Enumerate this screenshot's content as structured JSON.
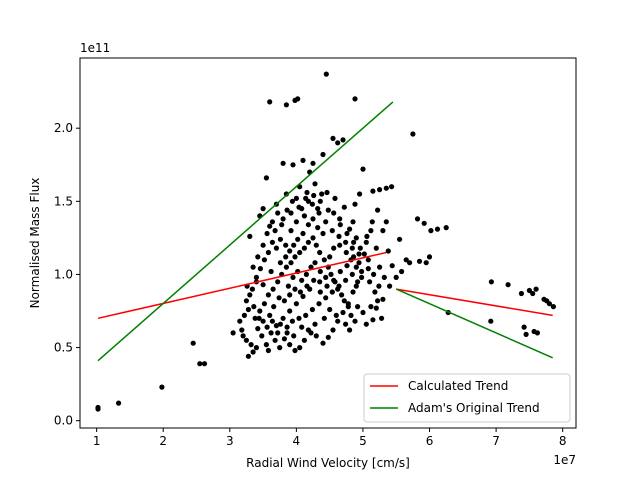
{
  "chart_data": {
    "type": "scatter",
    "title": "",
    "xlabel": "Radial Wind Velocity [cm/s]",
    "ylabel": "Normalised Mass Flux",
    "x_offset_label": "1e7",
    "y_offset_label": "1e11",
    "xlim": [
      0.75,
      8.2
    ],
    "ylim": [
      -0.05,
      2.48
    ],
    "xticks": [
      1,
      2,
      3,
      4,
      5,
      6,
      7,
      8
    ],
    "yticks": [
      0.0,
      0.5,
      1.0,
      1.5,
      2.0
    ],
    "xtick_labels": [
      "1",
      "2",
      "3",
      "4",
      "5",
      "6",
      "7",
      "8"
    ],
    "ytick_labels": [
      "0.0",
      "0.5",
      "1.0",
      "1.5",
      "2.0"
    ],
    "grid": false,
    "legend_position": "bottom-right",
    "point_color": "#000000",
    "series": [
      {
        "name": "Calculated Trend",
        "type": "line",
        "color": "#ff0000",
        "segments": [
          [
            [
              1.02,
              0.7
            ],
            [
              5.35,
              1.15
            ]
          ],
          [
            [
              5.5,
              0.9
            ],
            [
              7.85,
              0.72
            ]
          ]
        ]
      },
      {
        "name": "Adam's Original Trend",
        "type": "line",
        "color": "#008000",
        "segments": [
          [
            [
              1.02,
              0.41
            ],
            [
              5.45,
              2.18
            ]
          ],
          [
            [
              5.5,
              0.9
            ],
            [
              7.85,
              0.43
            ]
          ]
        ]
      }
    ],
    "scatter_points": [
      [
        1.02,
        0.08
      ],
      [
        1.02,
        0.09
      ],
      [
        1.33,
        0.12
      ],
      [
        1.98,
        0.23
      ],
      [
        2.45,
        0.53
      ],
      [
        2.55,
        0.39
      ],
      [
        2.62,
        0.39
      ],
      [
        6.28,
        0.74
      ],
      [
        6.92,
        0.68
      ],
      [
        6.93,
        0.95
      ],
      [
        7.18,
        0.93
      ],
      [
        7.38,
        0.87
      ],
      [
        7.42,
        0.64
      ],
      [
        7.45,
        0.59
      ],
      [
        7.5,
        0.89
      ],
      [
        7.55,
        0.87
      ],
      [
        7.57,
        0.61
      ],
      [
        7.6,
        0.9
      ],
      [
        7.62,
        0.6
      ],
      [
        7.72,
        0.83
      ],
      [
        7.76,
        0.82
      ],
      [
        7.8,
        0.8
      ],
      [
        7.86,
        0.78
      ],
      [
        3.6,
        2.18
      ],
      [
        3.85,
        2.16
      ],
      [
        3.98,
        2.19
      ],
      [
        4.02,
        2.2
      ],
      [
        4.45,
        2.37
      ],
      [
        4.88,
        2.2
      ],
      [
        5.75,
        1.96
      ],
      [
        3.8,
        1.76
      ],
      [
        3.95,
        1.75
      ],
      [
        4.1,
        1.78
      ],
      [
        4.25,
        1.76
      ],
      [
        4.55,
        1.93
      ],
      [
        4.62,
        1.9
      ],
      [
        4.7,
        1.92
      ],
      [
        4.4,
        1.82
      ],
      [
        4.2,
        1.7
      ],
      [
        3.55,
        1.66
      ],
      [
        5.0,
        1.72
      ],
      [
        5.25,
        1.58
      ],
      [
        5.35,
        1.59
      ],
      [
        5.43,
        1.6
      ],
      [
        5.15,
        1.57
      ],
      [
        4.95,
        1.55
      ],
      [
        4.88,
        1.48
      ],
      [
        5.35,
        1.36
      ],
      [
        5.55,
        1.24
      ],
      [
        5.82,
        1.38
      ],
      [
        5.92,
        1.35
      ],
      [
        6.02,
        1.3
      ],
      [
        6.12,
        1.31
      ],
      [
        6.25,
        1.32
      ],
      [
        6.0,
        1.12
      ],
      [
        5.85,
        1.09
      ],
      [
        5.95,
        1.08
      ],
      [
        5.65,
        1.1
      ],
      [
        5.7,
        1.08
      ],
      [
        5.58,
        1.02
      ],
      [
        5.4,
        0.92
      ],
      [
        5.3,
        0.83
      ],
      [
        5.2,
        0.77
      ],
      [
        5.15,
        0.69
      ],
      [
        5.05,
        0.66
      ],
      [
        5.28,
        0.7
      ],
      [
        5.5,
        0.98
      ],
      [
        3.2,
        0.58
      ],
      [
        3.28,
        0.44
      ],
      [
        3.35,
        0.47
      ],
      [
        3.15,
        0.68
      ],
      [
        3.05,
        0.6
      ],
      [
        3.25,
        0.82
      ],
      [
        3.4,
        0.95
      ],
      [
        3.5,
        0.93
      ],
      [
        3.3,
        1.26
      ],
      [
        3.45,
        1.4
      ],
      [
        3.5,
        1.45
      ],
      [
        3.6,
        1.33
      ],
      [
        3.7,
        1.48
      ],
      [
        3.78,
        1.34
      ],
      [
        3.85,
        1.55
      ],
      [
        3.92,
        1.3
      ],
      [
        4.0,
        1.52
      ],
      [
        4.05,
        1.6
      ],
      [
        4.12,
        1.4
      ],
      [
        4.18,
        1.5
      ],
      [
        4.28,
        1.62
      ],
      [
        4.32,
        1.45
      ],
      [
        4.38,
        1.55
      ],
      [
        4.48,
        1.44
      ],
      [
        4.58,
        1.52
      ],
      [
        4.65,
        1.38
      ],
      [
        4.72,
        1.46
      ],
      [
        4.8,
        1.31
      ],
      [
        4.85,
        1.36
      ],
      [
        4.9,
        1.25
      ],
      [
        5.05,
        1.22
      ],
      [
        5.12,
        1.3
      ],
      [
        5.2,
        1.18
      ],
      [
        5.25,
        1.05
      ],
      [
        5.08,
        1.1
      ],
      [
        4.98,
        1.02
      ],
      [
        4.92,
        0.95
      ],
      [
        4.85,
        0.88
      ],
      [
        4.78,
        0.8
      ],
      [
        4.7,
        0.74
      ],
      [
        4.62,
        0.68
      ],
      [
        4.55,
        0.62
      ],
      [
        4.48,
        0.57
      ],
      [
        4.4,
        0.53
      ],
      [
        4.3,
        0.58
      ],
      [
        4.22,
        0.6
      ],
      [
        4.12,
        0.55
      ],
      [
        4.05,
        0.5
      ],
      [
        3.98,
        0.48
      ],
      [
        3.9,
        0.52
      ],
      [
        3.82,
        0.56
      ],
      [
        3.75,
        0.5
      ],
      [
        3.68,
        0.55
      ],
      [
        3.62,
        0.6
      ],
      [
        3.55,
        0.52
      ],
      [
        3.48,
        0.58
      ],
      [
        3.42,
        0.63
      ],
      [
        3.38,
        0.7
      ],
      [
        3.45,
        0.75
      ],
      [
        3.52,
        0.8
      ],
      [
        3.58,
        0.86
      ],
      [
        3.65,
        0.9
      ],
      [
        3.72,
        0.95
      ],
      [
        3.78,
        1.0
      ],
      [
        3.85,
        1.05
      ],
      [
        3.92,
        1.08
      ],
      [
        3.98,
        1.12
      ],
      [
        4.05,
        1.15
      ],
      [
        4.12,
        1.18
      ],
      [
        4.18,
        1.22
      ],
      [
        4.25,
        1.25
      ],
      [
        4.3,
        1.2
      ],
      [
        4.35,
        1.15
      ],
      [
        4.42,
        1.1
      ],
      [
        4.48,
        1.05
      ],
      [
        4.52,
        1.0
      ],
      [
        4.58,
        0.95
      ],
      [
        4.62,
        0.9
      ],
      [
        4.68,
        0.86
      ],
      [
        4.72,
        0.82
      ],
      [
        4.78,
        0.78
      ],
      [
        4.82,
        0.72
      ],
      [
        4.88,
        0.68
      ],
      [
        4.65,
        1.2
      ],
      [
        4.75,
        1.15
      ],
      [
        4.82,
        1.1
      ],
      [
        4.9,
        1.05
      ],
      [
        4.35,
        0.95
      ],
      [
        4.2,
        0.9
      ],
      [
        4.1,
        0.85
      ],
      [
        4.0,
        0.8
      ],
      [
        3.9,
        0.75
      ],
      [
        3.8,
        0.7
      ],
      [
        3.7,
        0.65
      ],
      [
        3.6,
        0.72
      ],
      [
        3.5,
        0.68
      ],
      [
        3.88,
        0.92
      ],
      [
        3.95,
        0.98
      ],
      [
        4.02,
        1.02
      ],
      [
        4.08,
        0.96
      ],
      [
        4.15,
        1.0
      ],
      [
        4.22,
        1.05
      ],
      [
        4.28,
        1.08
      ],
      [
        4.36,
        1.02
      ],
      [
        4.44,
        0.98
      ],
      [
        4.5,
        1.12
      ],
      [
        4.56,
        1.18
      ],
      [
        4.4,
        1.28
      ],
      [
        4.32,
        1.32
      ],
      [
        4.25,
        1.38
      ],
      [
        4.18,
        1.34
      ],
      [
        4.1,
        1.28
      ],
      [
        4.02,
        1.24
      ],
      [
        3.96,
        1.2
      ],
      [
        3.9,
        1.16
      ],
      [
        3.84,
        1.12
      ],
      [
        3.76,
        1.08
      ],
      [
        3.7,
        1.18
      ],
      [
        3.64,
        1.22
      ],
      [
        3.58,
        1.15
      ],
      [
        3.52,
        1.1
      ],
      [
        3.46,
        1.04
      ],
      [
        3.4,
        0.98
      ],
      [
        3.34,
        0.9
      ],
      [
        3.28,
        0.76
      ],
      [
        3.22,
        0.72
      ],
      [
        3.18,
        0.62
      ],
      [
        3.25,
        0.55
      ],
      [
        3.32,
        0.52
      ],
      [
        3.4,
        0.5
      ],
      [
        3.58,
        0.48
      ],
      [
        3.72,
        0.6
      ],
      [
        3.86,
        0.64
      ],
      [
        3.94,
        0.68
      ],
      [
        4.04,
        0.7
      ],
      [
        4.14,
        0.72
      ],
      [
        4.24,
        0.76
      ],
      [
        4.34,
        0.8
      ],
      [
        4.44,
        0.84
      ],
      [
        4.54,
        0.88
      ],
      [
        4.64,
        0.92
      ],
      [
        4.74,
        0.96
      ],
      [
        4.84,
        1.0
      ],
      [
        4.94,
        1.08
      ],
      [
        5.02,
        1.14
      ],
      [
        3.66,
        0.78
      ],
      [
        3.74,
        0.84
      ],
      [
        3.82,
        0.82
      ],
      [
        3.9,
        0.86
      ],
      [
        3.98,
        0.9
      ],
      [
        4.06,
        0.88
      ],
      [
        4.16,
        0.92
      ],
      [
        4.26,
        0.96
      ],
      [
        4.36,
        0.88
      ],
      [
        4.46,
        0.92
      ],
      [
        4.56,
        0.96
      ],
      [
        4.66,
        1.02
      ],
      [
        4.76,
        1.06
      ],
      [
        4.86,
        1.12
      ],
      [
        3.62,
        1.02
      ],
      [
        3.68,
        1.3
      ],
      [
        3.76,
        1.24
      ],
      [
        3.84,
        1.2
      ],
      [
        3.92,
        1.42
      ],
      [
        4.0,
        1.36
      ],
      [
        4.08,
        1.45
      ],
      [
        4.16,
        1.56
      ],
      [
        4.24,
        1.48
      ],
      [
        4.34,
        1.42
      ],
      [
        4.44,
        1.36
      ],
      [
        4.54,
        1.3
      ],
      [
        4.64,
        1.26
      ],
      [
        4.74,
        1.22
      ],
      [
        4.84,
        1.18
      ],
      [
        4.94,
        1.14
      ],
      [
        5.1,
        0.95
      ],
      [
        5.18,
        0.88
      ],
      [
        5.22,
        0.82
      ],
      [
        5.12,
        0.78
      ],
      [
        5.0,
        0.74
      ],
      [
        4.92,
        0.78
      ],
      [
        4.8,
        0.62
      ],
      [
        4.74,
        0.66
      ],
      [
        4.6,
        0.72
      ],
      [
        4.5,
        0.76
      ],
      [
        4.42,
        0.7
      ],
      [
        4.28,
        0.66
      ],
      [
        4.18,
        0.62
      ],
      [
        4.08,
        0.64
      ],
      [
        3.96,
        0.58
      ],
      [
        3.86,
        0.6
      ],
      [
        3.76,
        0.66
      ],
      [
        3.64,
        0.68
      ],
      [
        3.56,
        0.64
      ],
      [
        3.44,
        0.7
      ],
      [
        3.36,
        0.78
      ],
      [
        3.3,
        0.86
      ],
      [
        3.26,
        0.92
      ],
      [
        3.35,
        1.05
      ],
      [
        3.42,
        1.12
      ],
      [
        3.5,
        1.2
      ],
      [
        3.56,
        1.28
      ],
      [
        3.64,
        1.36
      ],
      [
        3.72,
        1.42
      ],
      [
        3.8,
        1.38
      ],
      [
        3.86,
        1.44
      ],
      [
        3.94,
        1.5
      ],
      [
        4.04,
        1.46
      ],
      [
        4.14,
        1.52
      ],
      [
        4.26,
        1.54
      ],
      [
        4.36,
        1.5
      ],
      [
        4.46,
        1.56
      ],
      [
        4.56,
        1.42
      ],
      [
        4.66,
        1.34
      ],
      [
        4.76,
        1.28
      ],
      [
        4.86,
        1.22
      ],
      [
        4.96,
        1.18
      ],
      [
        5.06,
        1.26
      ],
      [
        5.14,
        1.36
      ],
      [
        5.22,
        1.44
      ],
      [
        5.3,
        1.3
      ],
      [
        5.38,
        1.16
      ],
      [
        5.44,
        1.06
      ],
      [
        5.32,
        0.98
      ],
      [
        5.24,
        0.92
      ],
      [
        5.16,
        1.0
      ],
      [
        5.08,
        1.04
      ],
      [
        4.98,
        0.98
      ],
      [
        4.9,
        0.92
      ]
    ]
  }
}
